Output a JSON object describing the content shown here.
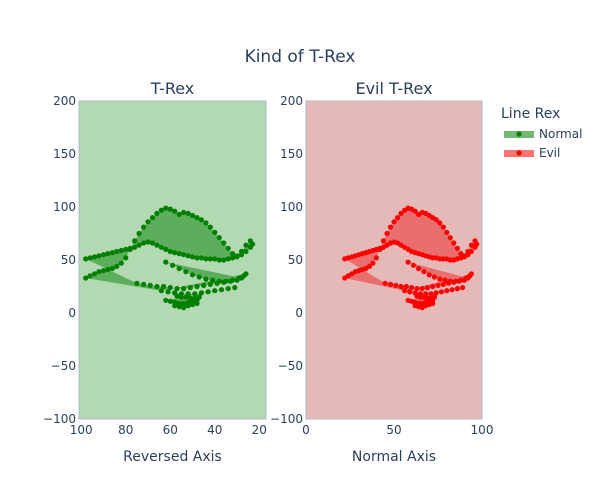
{
  "chart_data": {
    "type": "scatter",
    "title": "Kind of T-Rex",
    "legend": {
      "title": "Line Rex",
      "placement": "top-right",
      "items": [
        {
          "label": "Normal",
          "color": "#008000"
        },
        {
          "label": "Evil",
          "color": "#ff0000"
        }
      ]
    },
    "panels": [
      {
        "subtitle": "T-Rex",
        "xlabel": "Reversed Axis",
        "x_reversed": true,
        "xlim": [
          101,
          17
        ],
        "ylim": [
          -100,
          200
        ],
        "x_ticks": [
          100,
          80,
          60,
          40,
          20
        ],
        "y_ticks": [
          200,
          150,
          100,
          50,
          0,
          -50,
          -100
        ],
        "background": "#b3d9b3",
        "series_name": "Normal",
        "color": "#008000",
        "fill_color": "#4ca64c",
        "fill": "toself"
      },
      {
        "subtitle": "Evil T-Rex",
        "xlabel": "Normal Axis",
        "x_reversed": false,
        "xlim": [
          0,
          100
        ],
        "ylim": [
          -100,
          200
        ],
        "x_ticks": [
          0,
          50,
          100
        ],
        "y_ticks": [
          200,
          150,
          100,
          50,
          0,
          -50,
          -100
        ],
        "background": "#e6b9b9",
        "series_name": "Evil",
        "color": "#ff0000",
        "fill_color": "#e96060",
        "fill": "toself"
      }
    ],
    "series": [
      {
        "name": "T-Rex",
        "x": [
          98,
          96,
          94,
          92,
          90,
          88,
          86,
          84,
          82,
          80,
          78,
          76,
          74,
          72,
          70,
          68,
          66,
          64,
          62,
          60,
          58,
          56,
          54,
          52,
          50,
          48,
          46,
          44,
          42,
          40,
          38,
          36,
          34,
          32,
          30,
          28,
          26,
          24,
          23,
          24,
          26,
          28,
          30,
          32,
          34,
          36,
          38,
          40,
          42,
          44,
          46,
          48,
          50,
          52,
          54,
          56,
          58,
          60,
          62,
          64,
          66,
          68,
          70,
          72,
          74,
          76,
          78,
          80,
          82,
          84,
          86,
          88,
          90,
          92,
          94,
          96,
          98,
          75,
          72,
          69,
          66,
          63,
          60,
          57,
          54,
          51,
          48,
          45,
          42,
          39,
          36,
          33,
          30,
          28,
          62,
          59,
          56,
          53,
          50,
          47,
          44,
          41,
          38,
          35,
          32,
          29,
          27,
          26,
          64,
          61,
          58,
          55,
          52,
          49,
          46,
          43,
          40,
          37,
          34,
          31,
          62,
          60,
          58,
          56,
          54,
          52,
          50,
          48,
          58,
          56,
          54,
          52,
          50,
          48,
          57,
          55,
          53,
          51,
          49,
          47
        ],
        "y": [
          33,
          35,
          37,
          39,
          40,
          41,
          42,
          44,
          47,
          52,
          60,
          68,
          75,
          81,
          86,
          90,
          94,
          97,
          99,
          98,
          96,
          93,
          95,
          94,
          92,
          90,
          88,
          85,
          81,
          76,
          71,
          66,
          61,
          56,
          53,
          55,
          58,
          62,
          65,
          68,
          64,
          58,
          54,
          52,
          51,
          50,
          50,
          51,
          51,
          51,
          52,
          52,
          53,
          54,
          55,
          56,
          57,
          58,
          60,
          62,
          64,
          66,
          67,
          66,
          64,
          62,
          61,
          60,
          59,
          58,
          57,
          56,
          55,
          54,
          53,
          52,
          51,
          28,
          27,
          26,
          25,
          25,
          24,
          23,
          23,
          24,
          25,
          26,
          27,
          28,
          29,
          30,
          31,
          33,
          48,
          45,
          42,
          39,
          36,
          34,
          32,
          31,
          30,
          30,
          31,
          33,
          35,
          37,
          21,
          20,
          19,
          18,
          18,
          18,
          19,
          20,
          21,
          22,
          23,
          24,
          12,
          11,
          10,
          9,
          9,
          10,
          11,
          12,
          7,
          6,
          5,
          7,
          8,
          9,
          16,
          15,
          15,
          14,
          14,
          15
        ]
      }
    ]
  }
}
